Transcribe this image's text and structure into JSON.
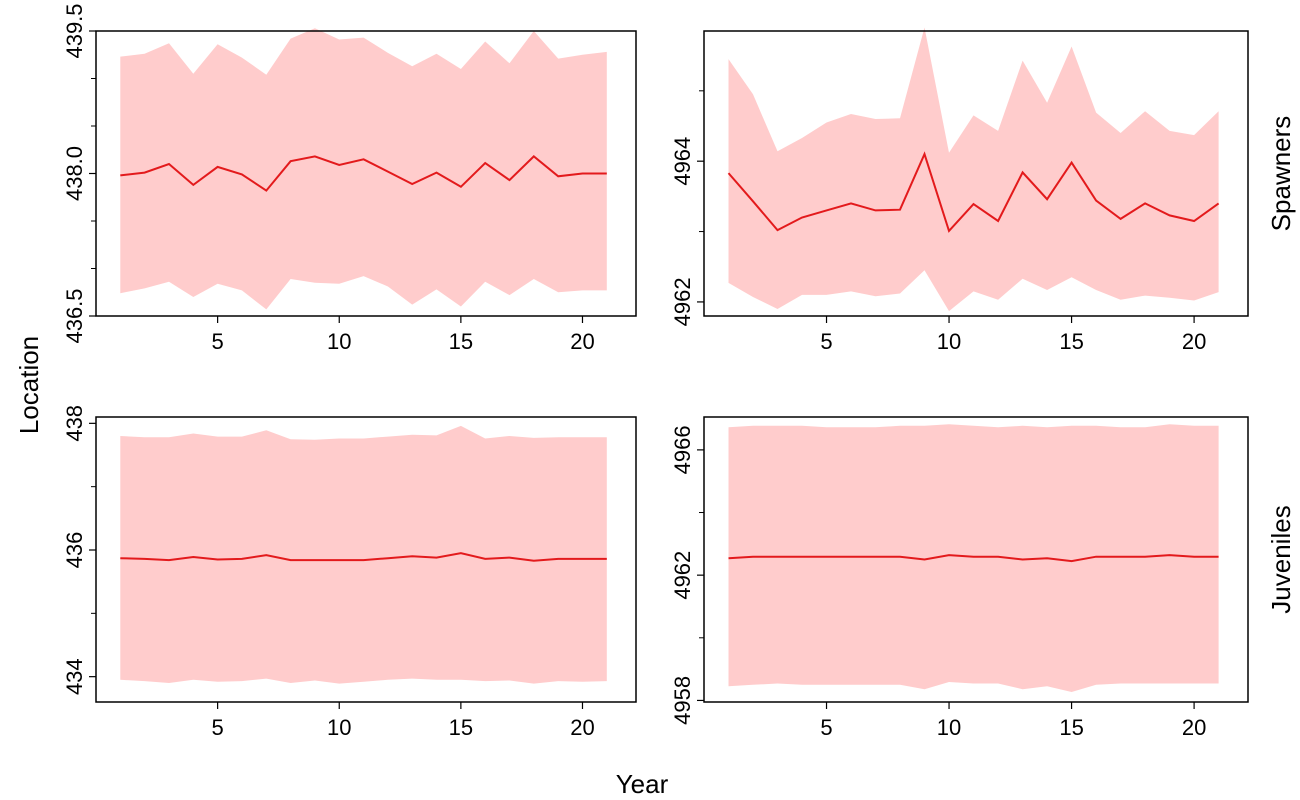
{
  "figure": {
    "xlabel": "Year",
    "ylabel": "Location",
    "colors": {
      "band": "#ffcccc",
      "line": "#e31a1c",
      "axis": "#000000"
    }
  },
  "chart_data": [
    {
      "type": "area",
      "row_label": "Spawners",
      "x": [
        1,
        2,
        3,
        4,
        5,
        6,
        7,
        8,
        9,
        10,
        11,
        12,
        13,
        14,
        15,
        16,
        17,
        18,
        19,
        20,
        21
      ],
      "series": [
        {
          "role": "mean",
          "values": [
            437.98,
            438.01,
            438.1,
            437.88,
            438.07,
            437.99,
            437.82,
            438.13,
            438.18,
            438.09,
            438.15,
            438.02,
            437.89,
            438.01,
            437.86,
            438.11,
            437.93,
            438.18,
            437.97,
            438.0,
            438.0
          ]
        },
        {
          "role": "lower",
          "values": [
            436.74,
            436.79,
            436.86,
            436.7,
            436.84,
            436.77,
            436.57,
            436.89,
            436.85,
            436.84,
            436.92,
            436.81,
            436.62,
            436.78,
            436.6,
            436.86,
            436.72,
            436.89,
            436.75,
            436.77,
            436.77
          ]
        },
        {
          "role": "upper",
          "values": [
            439.23,
            439.26,
            439.37,
            439.05,
            439.36,
            439.22,
            439.04,
            439.42,
            439.53,
            439.41,
            439.43,
            439.27,
            439.13,
            439.26,
            439.1,
            439.39,
            439.16,
            439.5,
            439.21,
            439.25,
            439.28
          ]
        }
      ],
      "ylim": [
        436.5,
        439.5
      ],
      "yticks": [
        436.5,
        438.0,
        439.5
      ],
      "ytick_labels": [
        "436.5",
        "438.0",
        "439.5"
      ],
      "yticks_minor": [
        437.0,
        437.5,
        438.5,
        439.0
      ],
      "xlim": [
        0,
        22.2
      ],
      "xticks": [
        5,
        10,
        15,
        20
      ],
      "xtick_labels": [
        "5",
        "10",
        "15",
        "20"
      ],
      "xticks_minor": []
    },
    {
      "type": "area",
      "row_label": "Spawners",
      "x": [
        1,
        2,
        3,
        4,
        5,
        6,
        7,
        8,
        9,
        10,
        11,
        12,
        13,
        14,
        15,
        16,
        17,
        18,
        19,
        20,
        21
      ],
      "series": [
        {
          "role": "mean",
          "values": [
            4963.83,
            4963.43,
            4963.02,
            4963.2,
            4963.3,
            4963.4,
            4963.3,
            4963.31,
            4964.1,
            4963.01,
            4963.39,
            4963.15,
            4963.84,
            4963.46,
            4963.98,
            4963.44,
            4963.18,
            4963.4,
            4963.23,
            4963.15,
            4963.4
          ]
        },
        {
          "role": "lower",
          "values": [
            4962.27,
            4962.07,
            4961.9,
            4962.1,
            4962.1,
            4962.15,
            4962.08,
            4962.12,
            4962.45,
            4961.87,
            4962.15,
            4962.03,
            4962.33,
            4962.17,
            4962.35,
            4962.17,
            4962.03,
            4962.09,
            4962.06,
            4962.02,
            4962.14
          ]
        },
        {
          "role": "upper",
          "values": [
            4965.45,
            4964.95,
            4964.14,
            4964.33,
            4964.55,
            4964.67,
            4964.6,
            4964.61,
            4965.9,
            4964.12,
            4964.65,
            4964.43,
            4965.43,
            4964.83,
            4965.63,
            4964.69,
            4964.4,
            4964.71,
            4964.43,
            4964.37,
            4964.71
          ]
        }
      ],
      "ylim": [
        4961.8,
        4965.85
      ],
      "yticks": [
        4962,
        4964
      ],
      "ytick_labels": [
        "4962",
        "4964"
      ],
      "yticks_minor": [
        4963,
        4965
      ],
      "xlim": [
        0,
        22.2
      ],
      "xticks": [
        5,
        10,
        15,
        20
      ],
      "xtick_labels": [
        "5",
        "10",
        "15",
        "20"
      ],
      "xticks_minor": []
    },
    {
      "type": "area",
      "row_label": "Juveniles",
      "x": [
        1,
        2,
        3,
        4,
        5,
        6,
        7,
        8,
        9,
        10,
        11,
        12,
        13,
        14,
        15,
        16,
        17,
        18,
        19,
        20,
        21
      ],
      "series": [
        {
          "role": "mean",
          "values": [
            435.87,
            435.86,
            435.84,
            435.89,
            435.85,
            435.86,
            435.92,
            435.84,
            435.84,
            435.84,
            435.84,
            435.87,
            435.9,
            435.88,
            435.95,
            435.86,
            435.88,
            435.83,
            435.86,
            435.86,
            435.86
          ]
        },
        {
          "role": "lower",
          "values": [
            433.95,
            433.93,
            433.9,
            433.95,
            433.92,
            433.93,
            433.97,
            433.9,
            433.94,
            433.89,
            433.92,
            433.95,
            433.97,
            433.95,
            433.95,
            433.93,
            433.94,
            433.89,
            433.93,
            433.92,
            433.93
          ]
        },
        {
          "role": "upper",
          "values": [
            437.8,
            437.78,
            437.78,
            437.84,
            437.79,
            437.79,
            437.89,
            437.75,
            437.74,
            437.76,
            437.76,
            437.79,
            437.82,
            437.81,
            437.96,
            437.76,
            437.8,
            437.77,
            437.78,
            437.78,
            437.78
          ]
        }
      ],
      "ylim": [
        433.6,
        438.1
      ],
      "yticks": [
        434,
        436,
        438
      ],
      "ytick_labels": [
        "434",
        "436",
        "438"
      ],
      "yticks_minor": [
        435,
        437
      ],
      "xlim": [
        0,
        22.2
      ],
      "xticks": [
        5,
        10,
        15,
        20
      ],
      "xtick_labels": [
        "5",
        "10",
        "15",
        "20"
      ],
      "xticks_minor": []
    },
    {
      "type": "area",
      "row_label": "Juveniles",
      "x": [
        1,
        2,
        3,
        4,
        5,
        6,
        7,
        8,
        9,
        10,
        11,
        12,
        13,
        14,
        15,
        16,
        17,
        18,
        19,
        20,
        21
      ],
      "series": [
        {
          "role": "mean",
          "values": [
            4962.54,
            4962.59,
            4962.59,
            4962.59,
            4962.59,
            4962.59,
            4962.59,
            4962.59,
            4962.5,
            4962.64,
            4962.59,
            4962.59,
            4962.5,
            4962.54,
            4962.45,
            4962.59,
            4962.59,
            4962.59,
            4962.64,
            4962.59,
            4962.59
          ]
        },
        {
          "role": "lower",
          "values": [
            4958.45,
            4958.5,
            4958.54,
            4958.5,
            4958.5,
            4958.5,
            4958.5,
            4958.5,
            4958.36,
            4958.59,
            4958.54,
            4958.54,
            4958.36,
            4958.45,
            4958.27,
            4958.5,
            4958.54,
            4958.54,
            4958.54,
            4958.54,
            4958.54
          ]
        },
        {
          "role": "upper",
          "values": [
            4966.72,
            4966.77,
            4966.77,
            4966.77,
            4966.72,
            4966.72,
            4966.72,
            4966.77,
            4966.77,
            4966.82,
            4966.77,
            4966.72,
            4966.77,
            4966.72,
            4966.77,
            4966.77,
            4966.72,
            4966.72,
            4966.82,
            4966.77,
            4966.77
          ]
        }
      ],
      "ylim": [
        4957.95,
        4967.05
      ],
      "yticks": [
        4958,
        4962,
        4966
      ],
      "ytick_labels": [
        "4958",
        "4962",
        "4966"
      ],
      "yticks_minor": [
        4960,
        4964
      ],
      "xlim": [
        0,
        22.2
      ],
      "xticks": [
        5,
        10,
        15,
        20
      ],
      "xtick_labels": [
        "5",
        "10",
        "15",
        "20"
      ],
      "xticks_minor": []
    }
  ]
}
